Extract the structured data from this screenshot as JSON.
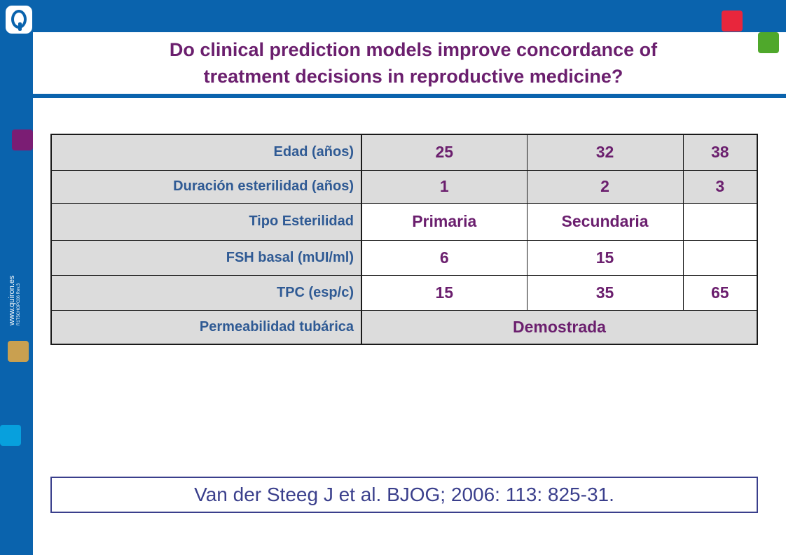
{
  "sidebar": {
    "url": "www.quiron.es",
    "code": "R1T5CHOPC06 Rev.3"
  },
  "title": {
    "line1": "Do clinical prediction models improve concordance of",
    "line2": "treatment decisions in reproductive medicine?"
  },
  "table": {
    "rows": [
      {
        "label": "Edad (años)",
        "values": [
          "25",
          "32",
          "38"
        ]
      },
      {
        "label": "Duración esterilidad (años)",
        "values": [
          "1",
          "2",
          "3"
        ]
      },
      {
        "label": "Tipo Esterilidad",
        "values": [
          "Primaria",
          "Secundaria",
          ""
        ]
      },
      {
        "label": "FSH basal (mUI/ml)",
        "values": [
          "6",
          "15",
          ""
        ]
      },
      {
        "label": "TPC (esp/c)",
        "values": [
          "15",
          "35",
          "65"
        ]
      },
      {
        "label": "Permeabilidad tubárica",
        "values": [
          "Demostrada"
        ]
      }
    ]
  },
  "reference": "Van der Steeg J et al. BJOG; 2006: 113: 825-31.",
  "colors": {
    "brand_blue": "#0a63ad",
    "title_purple": "#6b1f6e",
    "label_blue": "#2f5a94",
    "accent_red": "#e8263c",
    "accent_green": "#4fa82b",
    "accent_purple": "#7b1d74",
    "accent_gold": "#c9a050",
    "accent_cyan": "#07a0dd"
  }
}
